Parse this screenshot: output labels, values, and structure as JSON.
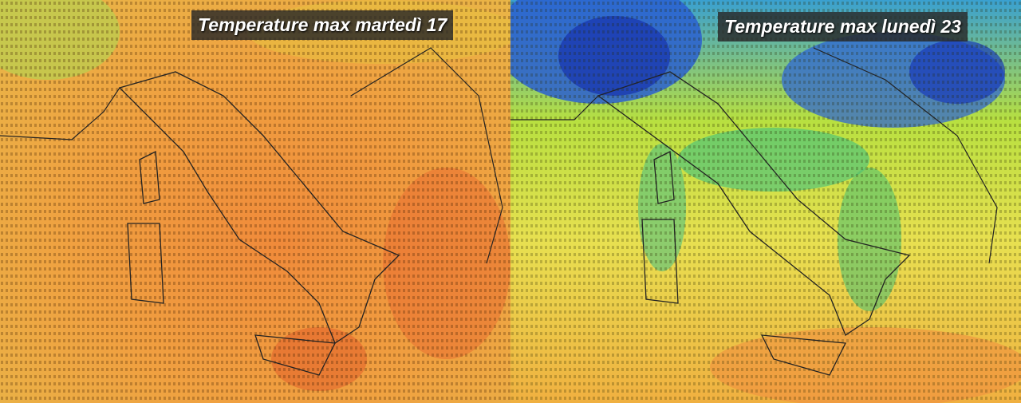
{
  "panels": [
    {
      "title": "Temperature max martedì 17"
    },
    {
      "title": "Temperature max lunedì 23"
    }
  ]
}
